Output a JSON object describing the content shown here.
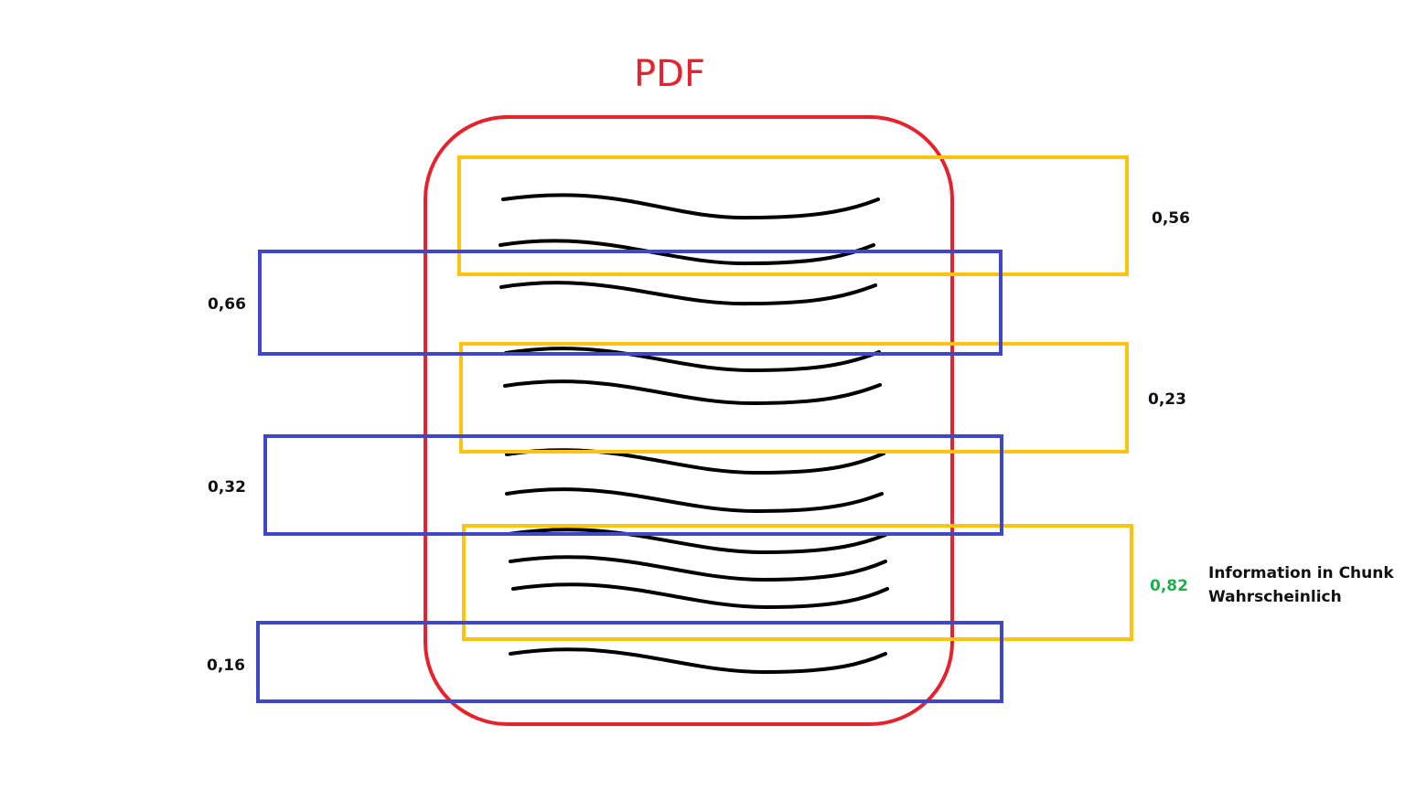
{
  "title": "PDF",
  "colors": {
    "document": "#e8222c",
    "chunk_set_a": "#fdc30f",
    "chunk_set_b": "#4046c8",
    "highlight_score": "#1fae4b",
    "text": "#111111"
  },
  "chunks_yellow": [
    {
      "score": "0,56"
    },
    {
      "score": "0,23"
    },
    {
      "score": "0,82",
      "highlight": true
    }
  ],
  "chunks_blue": [
    {
      "score": "0,66"
    },
    {
      "score": "0,32"
    },
    {
      "score": "0,16"
    }
  ],
  "note": {
    "line1": "Information in Chunk",
    "line2": "Wahrscheinlich"
  }
}
